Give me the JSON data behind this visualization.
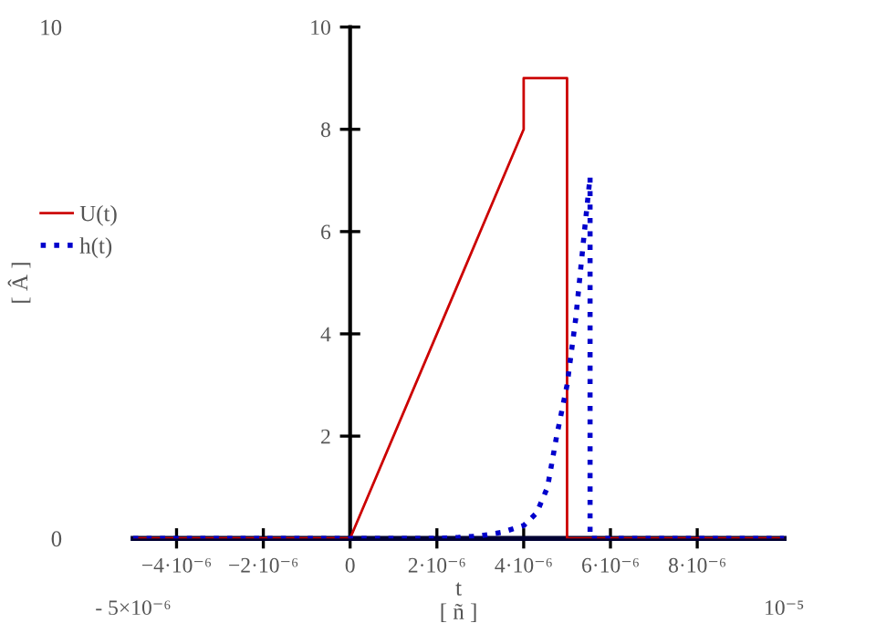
{
  "chart_data": {
    "type": "line",
    "xlabel": "t\n[ ñ ]",
    "y2label": "[ Â ]",
    "xlim": [
      -5e-06,
      1e-05
    ],
    "ylim": [
      0,
      10
    ],
    "xticks": [
      {
        "value": -4e-06,
        "label": "−4·10⁻⁶"
      },
      {
        "value": -2e-06,
        "label": "−2·10⁻⁶"
      },
      0,
      {
        "value": 2e-06,
        "label": "2·10⁻⁶"
      },
      {
        "value": 4e-06,
        "label": "4·10⁻⁶"
      },
      {
        "value": 6e-06,
        "label": "6·10⁻⁶"
      },
      {
        "value": 8e-06,
        "label": "8·10⁻⁶"
      }
    ],
    "yticks": [
      2,
      4,
      6,
      8,
      10
    ],
    "y2lim": [
      0,
      10
    ],
    "y2ticks": [
      0,
      10
    ],
    "annotations": [
      "- 5×10⁻⁶",
      "10⁻⁵"
    ],
    "grid": false,
    "legend": "left",
    "marker": "none",
    "series": [
      {
        "name": "U(t)",
        "color": "#cc0000",
        "line_style": "solid",
        "x": [
          -5e-06,
          0,
          4e-06,
          4e-06,
          5e-06,
          5e-06,
          1e-05
        ],
        "values": [
          0,
          0,
          8,
          9,
          9,
          0,
          0
        ]
      },
      {
        "name": "h(t)",
        "color": "#0000cc",
        "line_style": "dotted",
        "x": [
          -5e-06,
          0,
          2e-06,
          2.5e-06,
          3e-06,
          3.5e-06,
          4e-06,
          4.3e-06,
          4.55e-06,
          4.76e-06,
          5e-06,
          5.2e-06,
          5.4e-06,
          5.53e-06,
          5.53e-06,
          1e-05
        ],
        "values": [
          0,
          0,
          0,
          0.02,
          0.05,
          0.12,
          0.25,
          0.5,
          1.0,
          2.0,
          3.0,
          4.3,
          6.0,
          7.07,
          0,
          0
        ]
      }
    ]
  }
}
